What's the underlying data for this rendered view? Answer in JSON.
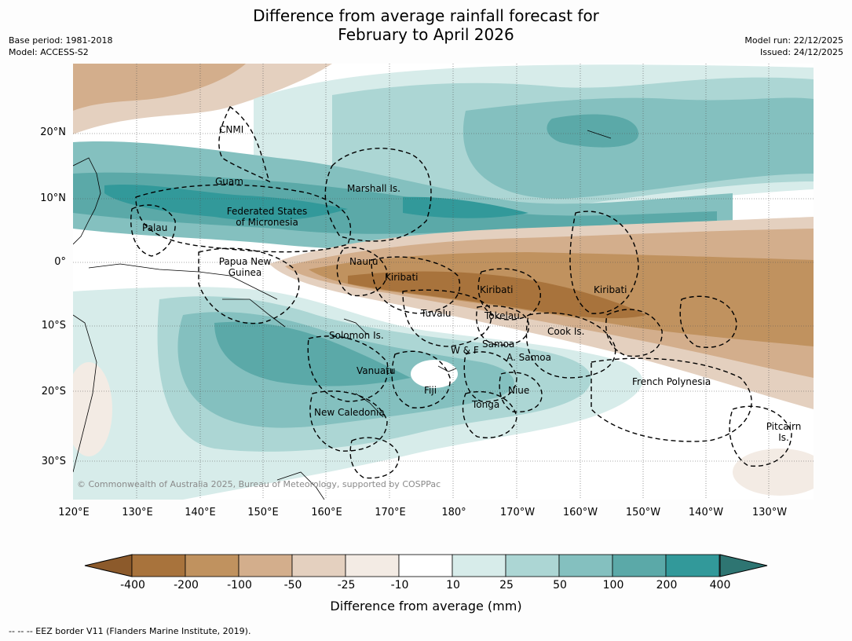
{
  "title_line1": "Difference from average rainfall forecast for",
  "title_line2": "February to April 2026",
  "base_period": "Base period: 1981-2018",
  "model": "Model: ACCESS-S2",
  "model_run": "Model run: 22/12/2025",
  "issued": "Issued: 24/12/2025",
  "lat_labels": [
    "20°N",
    "10°N",
    "0°",
    "10°S",
    "20°S",
    "30°S"
  ],
  "lon_labels": [
    "120°E",
    "130°E",
    "140°E",
    "150°E",
    "160°E",
    "170°E",
    "180°",
    "170°W",
    "160°W",
    "150°W",
    "140°W",
    "130°W"
  ],
  "regions": {
    "cnmi": "CNMI",
    "guam": "Guam",
    "marshall": "Marshall Is.",
    "fsm1": "Federated States",
    "fsm2": "of Micronesia",
    "palau": "Palau",
    "png1": "Papua New",
    "png2": "Guinea",
    "nauru": "Nauru",
    "kiribati_w": "Kiribati",
    "kiribati_c": "Kiribati",
    "kiribati_e": "Kiribati",
    "tuvalu": "Tuvalu",
    "tokelau": "Tokelau",
    "cook": "Cook Is.",
    "solomon": "Solomon Is.",
    "wf": "W & F",
    "samoa": "Samoa",
    "asamoa": "A. Samoa",
    "vanuatu": "Vanuatu",
    "fiji": "Fiji",
    "niue": "Niue",
    "tonga": "Tonga",
    "frenchpoly": "French Polynesia",
    "newcal": "New Caledonia",
    "pitcairn1": "Pitcairn",
    "pitcairn2": "Is."
  },
  "copyright": "© Commonwealth of Australia 2025, Bureau of Meteorology, supported by COSPPac",
  "colorbar": {
    "ticks": [
      "-400",
      "-200",
      "-100",
      "-50",
      "-25",
      "-10",
      "10",
      "25",
      "50",
      "100",
      "200",
      "400"
    ],
    "colors": [
      "#a8733c",
      "#c0925f",
      "#d3ae8c",
      "#e4d0bf",
      "#f3ebe4",
      "#ffffff",
      "#d7ecea",
      "#acd6d4",
      "#84c0bf",
      "#5ba9a8",
      "#32999a"
    ],
    "extend_low_color": "#8c5a2b",
    "extend_high_color": "#2e7572",
    "label": "Difference from average (mm)"
  },
  "footnote": "-- -- -- EEZ border V11 (Flanders Marine Institute, 2019)."
}
